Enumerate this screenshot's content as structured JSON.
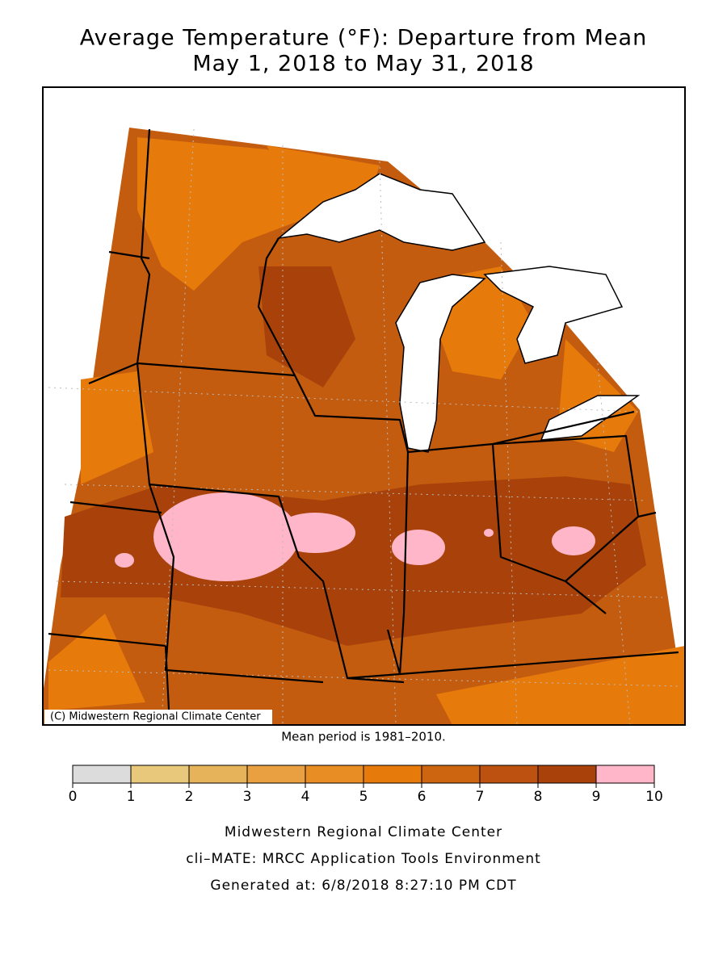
{
  "title": [
    "Average Temperature (°F): Departure from Mean",
    "May 1, 2018 to May 31, 2018"
  ],
  "map": {
    "credit": "(C) Midwestern Regional Climate Center"
  },
  "note": "Mean period is 1981–2010.",
  "legend": {
    "ticks": [
      0,
      1,
      2,
      3,
      4,
      5,
      6,
      7,
      8,
      9,
      10
    ],
    "colors": [
      "#dcdcdc",
      "#e8c87a",
      "#e6b25a",
      "#e8a040",
      "#e88c24",
      "#e67a0a",
      "#cd6410",
      "#bd5210",
      "#a8420a",
      "#ffb6c8"
    ]
  },
  "footer": [
    "Midwestern Regional Climate Center",
    "cli–MATE: MRCC Application Tools Environment",
    "Generated at: 6/8/2018 8:27:10 PM CDT"
  ]
}
